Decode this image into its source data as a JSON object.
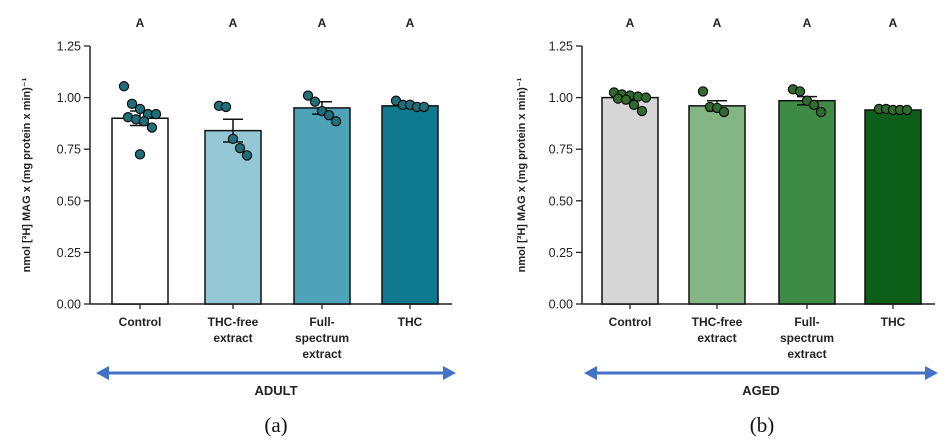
{
  "colors": {
    "arrow": "#4472C4",
    "axis": "#222222",
    "dot_adult_fill": "#1f6e7a",
    "dot_aged_fill": "#2f6b2f"
  },
  "chart_data": [
    {
      "panel": "(a)",
      "type": "bar",
      "ylabel": "nmol [³H] MAG x (mg protein x min)⁻¹",
      "ylim": [
        0,
        1.25
      ],
      "yticks": [
        "0.00",
        "0.25",
        "0.50",
        "0.75",
        "1.00",
        "1.25"
      ],
      "categories": [
        "Control",
        "THC-free extract",
        "Full-spectrum extract",
        "THC"
      ],
      "category_lines": [
        [
          "Control"
        ],
        [
          "THC-free",
          "extract"
        ],
        [
          "Full-",
          "spectrum",
          "extract"
        ],
        [
          "THC"
        ]
      ],
      "values": [
        0.9,
        0.84,
        0.95,
        0.96
      ],
      "errors": [
        0.035,
        0.055,
        0.03,
        0.01
      ],
      "significance": [
        "A",
        "A",
        "A",
        "A"
      ],
      "bar_colors": [
        "#ffffff",
        "#94c8d6",
        "#4ea3b9",
        "#0f7a8f"
      ],
      "points": [
        [
          1.055,
          0.97,
          0.945,
          0.92,
          0.92,
          0.905,
          0.895,
          0.885,
          0.855,
          0.725
        ],
        [
          0.96,
          0.955,
          0.8,
          0.755,
          0.72
        ],
        [
          1.01,
          0.98,
          0.935,
          0.915,
          0.885
        ],
        [
          0.985,
          0.965,
          0.965,
          0.955,
          0.955
        ]
      ],
      "group_label": "ADULT",
      "grid": false
    },
    {
      "panel": "(b)",
      "type": "bar",
      "ylabel": "nmol [³H] MAG x (mg protein x min)⁻¹",
      "ylim": [
        0,
        1.25
      ],
      "yticks": [
        "0.00",
        "0.25",
        "0.50",
        "0.75",
        "1.00",
        "1.25"
      ],
      "categories": [
        "Control",
        "THC-free extract",
        "Full-spectrum extract",
        "THC"
      ],
      "category_lines": [
        [
          "Control"
        ],
        [
          "THC-free",
          "extract"
        ],
        [
          "Full-",
          "spectrum",
          "extract"
        ],
        [
          "THC"
        ]
      ],
      "values": [
        1.0,
        0.96,
        0.985,
        0.94
      ],
      "errors": [
        0.012,
        0.025,
        0.02,
        0.004
      ],
      "significance": [
        "A",
        "A",
        "A",
        "A"
      ],
      "bar_colors": [
        "#d6d6d6",
        "#84b584",
        "#3f8a44",
        "#0d5e18"
      ],
      "points": [
        [
          1.025,
          1.015,
          1.01,
          1.005,
          1.0,
          0.995,
          0.99,
          0.965,
          0.935
        ],
        [
          1.03,
          0.955,
          0.95,
          0.93
        ],
        [
          1.04,
          1.03,
          0.985,
          0.965,
          0.93
        ],
        [
          0.945,
          0.945,
          0.94,
          0.94,
          0.94
        ]
      ],
      "group_label": "AGED",
      "grid": false
    }
  ]
}
